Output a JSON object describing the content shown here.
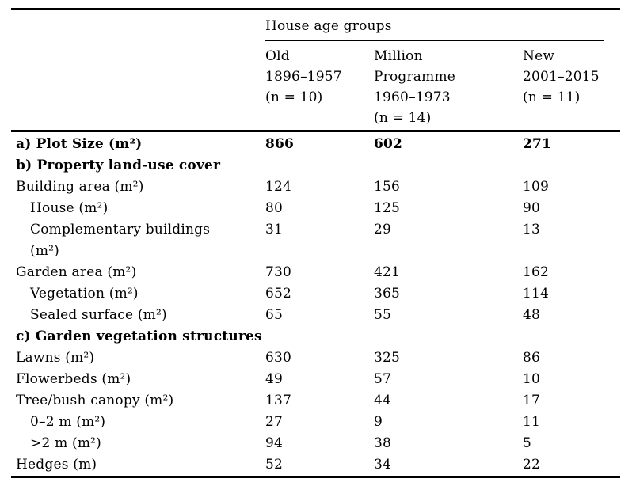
{
  "page": {
    "background": "#ffffff",
    "text_color": "#000000",
    "rule_color": "#000000"
  },
  "table": {
    "spanner_label": "House age groups",
    "column_headers": [
      "Old\n1896–1957\n(n = 10)",
      "Million\nProgramme\n1960–1973\n(n = 14)",
      "New\n2001–2015\n(n = 11)"
    ],
    "rows": [
      {
        "label": "a) Plot Size (m²)",
        "section": true,
        "values": [
          "866",
          "602",
          "271"
        ]
      },
      {
        "label": "b) Property land-use cover",
        "section": true,
        "values": []
      },
      {
        "label": "Building area (m²)",
        "values": [
          "124",
          "156",
          "109"
        ]
      },
      {
        "label": "House (m²)",
        "indent": true,
        "values": [
          "80",
          "125",
          "90"
        ]
      },
      {
        "label": "Complementary buildings\n(m²)",
        "indent": true,
        "values": [
          "31",
          "29",
          "13"
        ]
      },
      {
        "label": "Garden area (m²)",
        "values": [
          "730",
          "421",
          "162"
        ]
      },
      {
        "label": "Vegetation (m²)",
        "indent": true,
        "values": [
          "652",
          "365",
          "114"
        ]
      },
      {
        "label": "Sealed surface (m²)",
        "indent": true,
        "values": [
          "65",
          "55",
          "48"
        ]
      },
      {
        "label": "c) Garden vegetation structures",
        "section": true,
        "values": []
      },
      {
        "label": "Lawns (m²)",
        "values": [
          "630",
          "325",
          "86"
        ]
      },
      {
        "label": "Flowerbeds (m²)",
        "values": [
          "49",
          "57",
          "10"
        ]
      },
      {
        "label": "Tree/bush canopy (m²)",
        "values": [
          "137",
          "44",
          "17"
        ]
      },
      {
        "label": "0–2 m (m²)",
        "indent": true,
        "values": [
          "27",
          "9",
          "11"
        ]
      },
      {
        "label": ">2 m (m²)",
        "indent": true,
        "values": [
          "94",
          "38",
          "5"
        ]
      },
      {
        "label": "Hedges (m)",
        "values": [
          "52",
          "34",
          "22"
        ]
      }
    ]
  }
}
